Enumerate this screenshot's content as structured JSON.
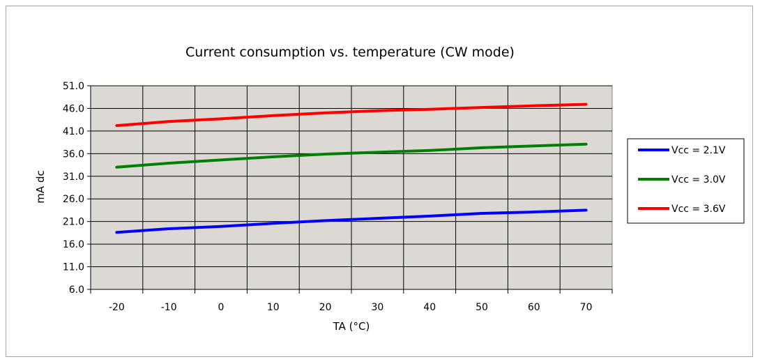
{
  "chart_data": {
    "type": "line",
    "title": "Current consumption  vs. temperature (CW mode)",
    "xlabel": "TA (°C)",
    "ylabel": "mA dc",
    "x": [
      -20,
      -10,
      0,
      10,
      20,
      30,
      40,
      50,
      60,
      70
    ],
    "x_tick_labels": [
      "-20",
      "-10",
      "0",
      "10",
      "20",
      "30",
      "40",
      "50",
      "60",
      "70"
    ],
    "y_tick_labels": [
      "6.0",
      "11.0",
      "16.0",
      "21.0",
      "26.0",
      "31.0",
      "36.0",
      "41.0",
      "46.0",
      "51.0"
    ],
    "ylim": [
      6,
      51
    ],
    "xlim": [
      -25,
      75
    ],
    "grid": true,
    "legend_position": "right",
    "series": [
      {
        "name": "Vcc = 2.1V",
        "color": "#0000ff",
        "values": [
          18.6,
          19.4,
          19.9,
          20.6,
          21.2,
          21.7,
          22.2,
          22.8,
          23.1,
          23.5
        ]
      },
      {
        "name": "Vcc = 3.0V",
        "color": "#008000",
        "values": [
          33.0,
          33.9,
          34.6,
          35.3,
          35.9,
          36.3,
          36.7,
          37.3,
          37.7,
          38.1
        ]
      },
      {
        "name": "Vcc = 3.6V",
        "color": "#ff0000",
        "values": [
          42.2,
          43.1,
          43.7,
          44.4,
          45.0,
          45.5,
          45.8,
          46.2,
          46.6,
          46.9
        ]
      }
    ]
  }
}
